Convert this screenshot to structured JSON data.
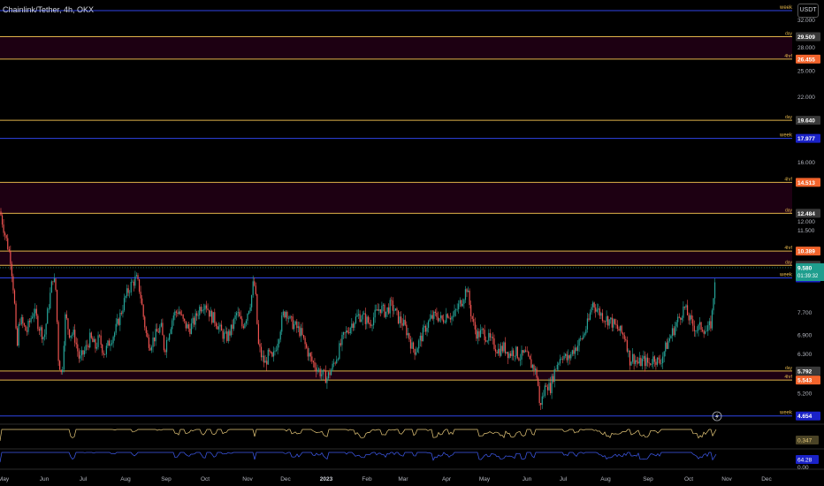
{
  "header": {
    "title": "Chainlink/Tether, 4h, OKX",
    "currency": "USDT"
  },
  "colors": {
    "up": "#26a69a",
    "down": "#ef5350",
    "level_line_yellow": "#e0b34a",
    "level_line_blue": "#2f45e8",
    "orange_badge": "#f2642c",
    "zone_fill": "#1d0012",
    "indicator1": "#e7c97a",
    "indicator2": "#3f5bf0"
  },
  "chart_data": {
    "type": "candlestick",
    "y_scale": "log",
    "ylim": [
      4.55,
      33.5
    ],
    "y_ticks": [
      {
        "value": 32.0,
        "label": "32.000"
      },
      {
        "value": 28.0,
        "label": "28.000"
      },
      {
        "value": 25.0,
        "label": "25.000"
      },
      {
        "value": 22.0,
        "label": "22.000"
      },
      {
        "value": 16.0,
        "label": "16.000"
      },
      {
        "value": 12.0,
        "label": "12.000"
      },
      {
        "value": 11.5,
        "label": "11.500"
      },
      {
        "value": 7.7,
        "label": "7.700"
      },
      {
        "value": 6.9,
        "label": "6.900"
      },
      {
        "value": 6.3,
        "label": "6.300"
      },
      {
        "value": 5.2,
        "label": "5.200"
      }
    ],
    "x_labels": [
      "May",
      "Jun",
      "Jul",
      "Aug",
      "Sep",
      "Oct",
      "Nov",
      "Dec",
      "2023",
      "Feb",
      "Mar",
      "Apr",
      "May",
      "Jun",
      "Jul",
      "Aug",
      "Sep",
      "Oct",
      "Nov",
      "Dec"
    ],
    "x_label_bold": "2023",
    "levels": [
      {
        "value": 33.5,
        "tag": "week",
        "price": "",
        "style": "blue"
      },
      {
        "value": 29.509,
        "tag": "day",
        "price": "29.509",
        "style": "yellow"
      },
      {
        "value": 26.455,
        "tag": "4hrf",
        "price": "26.455",
        "style": "orange"
      },
      {
        "value": 19.64,
        "tag": "day",
        "price": "19.640",
        "style": "yellow"
      },
      {
        "value": 17.977,
        "tag": "week",
        "price": "17.977",
        "style": "blue"
      },
      {
        "value": 14.513,
        "tag": "4hrf",
        "price": "14.513",
        "style": "orange"
      },
      {
        "value": 12.484,
        "tag": "day",
        "price": "12.484",
        "style": "yellow"
      },
      {
        "value": 10.389,
        "tag": "4hrf",
        "price": "10.389",
        "style": "orange"
      },
      {
        "value": 9.69,
        "tag": "day",
        "price": "9.690",
        "style": "yellow"
      },
      {
        "value": 9.116,
        "tag": "week",
        "price": "9.116",
        "style": "blue"
      },
      {
        "value": 5.792,
        "tag": "day",
        "price": "5.792",
        "style": "yellow"
      },
      {
        "value": 5.543,
        "tag": "4hrf",
        "price": "5.543",
        "style": "orange"
      },
      {
        "value": 4.654,
        "tag": "week",
        "price": "4.654",
        "style": "blue"
      }
    ],
    "zones": [
      {
        "from": 26.455,
        "to": 29.509
      },
      {
        "from": 12.484,
        "to": 14.513
      },
      {
        "from": 9.69,
        "to": 10.389
      },
      {
        "from": 5.543,
        "to": 5.792
      }
    ],
    "current_price": {
      "value": 9.58,
      "label": "9.580",
      "countdown": "01:39:32"
    },
    "price_path": [
      [
        0,
        12.6
      ],
      [
        6,
        11.2
      ],
      [
        12,
        10.0
      ],
      [
        16,
        8.3
      ],
      [
        19,
        6.3
      ],
      [
        22,
        7.5
      ],
      [
        30,
        7.0
      ],
      [
        38,
        7.8
      ],
      [
        44,
        7.2
      ],
      [
        50,
        6.8
      ],
      [
        56,
        8.2
      ],
      [
        60,
        9.2
      ],
      [
        63,
        8.6
      ],
      [
        66,
        6.2
      ],
      [
        70,
        5.6
      ],
      [
        74,
        7.6
      ],
      [
        78,
        7.0
      ],
      [
        84,
        6.9
      ],
      [
        90,
        6.1
      ],
      [
        96,
        6.4
      ],
      [
        102,
        6.8
      ],
      [
        108,
        6.5
      ],
      [
        112,
        6.8
      ],
      [
        118,
        6.3
      ],
      [
        124,
        6.7
      ],
      [
        130,
        7.0
      ],
      [
        136,
        7.6
      ],
      [
        142,
        8.3
      ],
      [
        148,
        8.8
      ],
      [
        154,
        9.1
      ],
      [
        158,
        8.6
      ],
      [
        162,
        7.6
      ],
      [
        166,
        6.8
      ],
      [
        170,
        6.6
      ],
      [
        176,
        6.9
      ],
      [
        182,
        7.2
      ],
      [
        186,
        6.4
      ],
      [
        190,
        6.9
      ],
      [
        196,
        7.6
      ],
      [
        202,
        7.8
      ],
      [
        208,
        7.3
      ],
      [
        214,
        7.1
      ],
      [
        220,
        7.4
      ],
      [
        226,
        7.9
      ],
      [
        232,
        8.1
      ],
      [
        238,
        7.6
      ],
      [
        244,
        7.4
      ],
      [
        250,
        7.0
      ],
      [
        256,
        6.8
      ],
      [
        262,
        7.1
      ],
      [
        268,
        7.7
      ],
      [
        274,
        7.2
      ],
      [
        278,
        7.5
      ],
      [
        284,
        8.2
      ],
      [
        287,
        9.0
      ],
      [
        289,
        8.4
      ],
      [
        292,
        6.6
      ],
      [
        296,
        6.2
      ],
      [
        300,
        6.0
      ],
      [
        304,
        6.3
      ],
      [
        308,
        6.1
      ],
      [
        312,
        6.5
      ],
      [
        316,
        7.0
      ],
      [
        320,
        7.6
      ],
      [
        324,
        7.8
      ],
      [
        328,
        7.4
      ],
      [
        334,
        7.2
      ],
      [
        340,
        7.0
      ],
      [
        346,
        6.5
      ],
      [
        352,
        6.1
      ],
      [
        358,
        5.9
      ],
      [
        364,
        5.7
      ],
      [
        370,
        5.6
      ],
      [
        376,
        5.9
      ],
      [
        382,
        6.3
      ],
      [
        388,
        6.8
      ],
      [
        394,
        7.1
      ],
      [
        400,
        7.4
      ],
      [
        406,
        7.6
      ],
      [
        412,
        7.5
      ],
      [
        418,
        7.3
      ],
      [
        424,
        7.6
      ],
      [
        430,
        7.9
      ],
      [
        436,
        7.7
      ],
      [
        442,
        8.0
      ],
      [
        446,
        7.8
      ],
      [
        450,
        7.5
      ],
      [
        456,
        7.3
      ],
      [
        462,
        6.9
      ],
      [
        466,
        6.5
      ],
      [
        470,
        6.4
      ],
      [
        476,
        6.8
      ],
      [
        482,
        7.2
      ],
      [
        488,
        7.5
      ],
      [
        494,
        7.6
      ],
      [
        500,
        7.4
      ],
      [
        506,
        7.7
      ],
      [
        512,
        7.5
      ],
      [
        518,
        7.9
      ],
      [
        524,
        8.3
      ],
      [
        528,
        8.7
      ],
      [
        532,
        7.8
      ],
      [
        536,
        7.2
      ],
      [
        540,
        6.9
      ],
      [
        546,
        7.0
      ],
      [
        552,
        6.8
      ],
      [
        558,
        6.6
      ],
      [
        564,
        6.4
      ],
      [
        570,
        6.5
      ],
      [
        576,
        6.3
      ],
      [
        582,
        6.4
      ],
      [
        588,
        6.2
      ],
      [
        594,
        6.3
      ],
      [
        600,
        6.0
      ],
      [
        604,
        5.9
      ],
      [
        608,
        5.6
      ],
      [
        610,
        4.9
      ],
      [
        614,
        5.1
      ],
      [
        618,
        5.5
      ],
      [
        622,
        5.3
      ],
      [
        626,
        5.7
      ],
      [
        630,
        6.0
      ],
      [
        636,
        6.3
      ],
      [
        642,
        6.1
      ],
      [
        648,
        6.4
      ],
      [
        654,
        6.6
      ],
      [
        660,
        6.9
      ],
      [
        666,
        7.4
      ],
      [
        670,
        8.1
      ],
      [
        674,
        7.9
      ],
      [
        678,
        7.7
      ],
      [
        684,
        7.5
      ],
      [
        690,
        7.4
      ],
      [
        696,
        7.2
      ],
      [
        702,
        7.0
      ],
      [
        708,
        6.8
      ],
      [
        712,
        6.1
      ],
      [
        716,
        6.2
      ],
      [
        722,
        6.0
      ],
      [
        728,
        6.1
      ],
      [
        734,
        6.0
      ],
      [
        740,
        6.2
      ],
      [
        746,
        6.0
      ],
      [
        750,
        6.3
      ],
      [
        756,
        6.7
      ],
      [
        762,
        7.1
      ],
      [
        768,
        7.5
      ],
      [
        774,
        7.9
      ],
      [
        778,
        7.6
      ],
      [
        782,
        7.3
      ],
      [
        788,
        7.1
      ],
      [
        794,
        7.2
      ],
      [
        800,
        7.0
      ],
      [
        804,
        7.3
      ],
      [
        806,
        7.8
      ],
      [
        808,
        8.9
      ],
      [
        810,
        9.58
      ]
    ],
    "indicators": [
      {
        "value": 0.347,
        "label": "0.347"
      },
      {
        "value": 64.28,
        "label": "64.28"
      }
    ],
    "bottom_axis_label": "0.00"
  }
}
